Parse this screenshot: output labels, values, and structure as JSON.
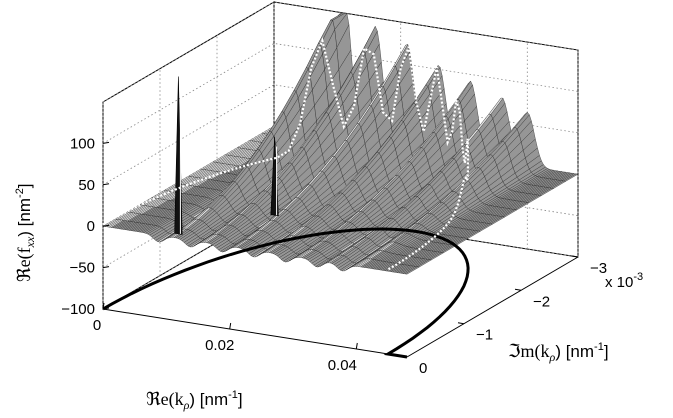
{
  "chart_data": {
    "type": "surface3d",
    "title": "",
    "zlabel_symbol": "ℜe(f",
    "zlabel_sub": "xx",
    "zlabel_unit": ") [nm",
    "zlabel_exp": "-2",
    "zlabel_close": "]",
    "xlabel_symbol": "ℜe(k",
    "xlabel_sub": "ρ",
    "xlabel_unit": ") [nm",
    "xlabel_exp": "-1",
    "xlabel_close": "]",
    "ylabel_symbol": "ℑm(k",
    "ylabel_sub": "ρ",
    "ylabel_unit": ") [nm",
    "ylabel_exp": "-1",
    "ylabel_close": "]",
    "x_axis": {
      "range": [
        0,
        0.048
      ],
      "ticks": [
        0,
        0.02,
        0.04
      ],
      "tick_labels": [
        "0",
        "0.02",
        "0.04"
      ]
    },
    "y_axis": {
      "range": [
        0,
        -0.003
      ],
      "ticks": [
        0,
        -0.001,
        -0.002,
        -0.003
      ],
      "tick_labels": [
        "0",
        "−1",
        "−2",
        "−3"
      ],
      "multiplier_label": "x 10",
      "multiplier_exp": "-3"
    },
    "z_axis": {
      "range": [
        -100,
        150
      ],
      "ticks": [
        -100,
        -50,
        0,
        50,
        100
      ],
      "tick_labels": [
        "−100",
        "−50",
        "0",
        "50",
        "100"
      ]
    },
    "grid": true,
    "colormap": "grayscale mesh",
    "ridge_peaks": [
      {
        "x": 0.011,
        "peak": 180
      },
      {
        "x": 0.016,
        "peak": 140
      },
      {
        "x": 0.021,
        "peak": 125
      },
      {
        "x": 0.026,
        "peak": 105
      },
      {
        "x": 0.031,
        "peak": 92
      },
      {
        "x": 0.036,
        "peak": 78
      },
      {
        "x": 0.04,
        "peak": 65
      }
    ],
    "poles": [
      {
        "x": 0.011,
        "y": -0.0001,
        "value": 190
      },
      {
        "x": 0.019,
        "y": -0.0009,
        "value": 95
      }
    ],
    "contour_curve": {
      "description_style": "semicircle",
      "x_start": 0,
      "x_end": 0.045,
      "y_peak": -0.003
    }
  }
}
